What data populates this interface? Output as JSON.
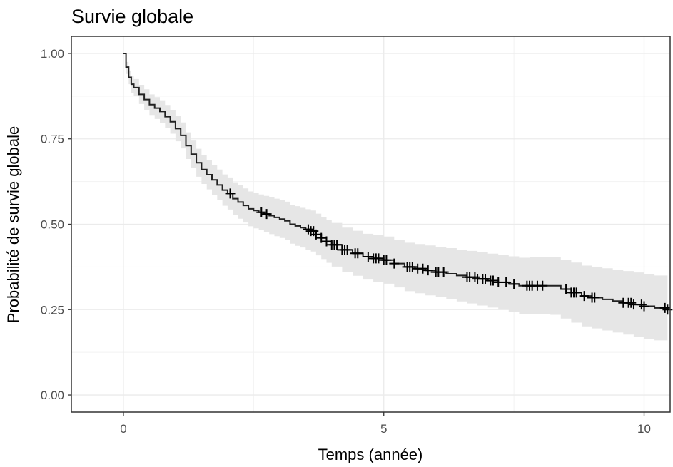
{
  "chart_data": {
    "type": "line",
    "title": "Survie globale",
    "xlabel": "Temps (année)",
    "ylabel": "Probabilité de survie globale",
    "xlim": [
      -1,
      10.5
    ],
    "ylim": [
      -0.05,
      1.05
    ],
    "x_ticks": [
      0,
      5,
      10
    ],
    "x_tick_labels": [
      "0",
      "5",
      "10"
    ],
    "y_ticks": [
      0,
      0.25,
      0.5,
      0.75,
      1
    ],
    "y_tick_labels": [
      "0.00",
      "0.25",
      "0.50",
      "0.75",
      "1.00"
    ],
    "grid": true,
    "legend": "none",
    "line_color": "#222222",
    "ci_color": "#e6e6e6",
    "survival": {
      "time": [
        0,
        0.05,
        0.1,
        0.15,
        0.2,
        0.3,
        0.4,
        0.5,
        0.6,
        0.7,
        0.8,
        0.9,
        1.0,
        1.1,
        1.2,
        1.3,
        1.4,
        1.5,
        1.6,
        1.7,
        1.8,
        1.9,
        2.0,
        2.1,
        2.2,
        2.3,
        2.4,
        2.5,
        2.6,
        2.7,
        2.8,
        2.9,
        3.0,
        3.1,
        3.2,
        3.3,
        3.4,
        3.5,
        3.6,
        3.7,
        3.8,
        3.9,
        4.0,
        4.2,
        4.4,
        4.6,
        4.8,
        5.0,
        5.2,
        5.4,
        5.6,
        5.8,
        6.0,
        6.2,
        6.4,
        6.6,
        6.8,
        7.0,
        7.2,
        7.4,
        7.6,
        7.8,
        8.0,
        8.2,
        8.4,
        8.6,
        8.8,
        9.0,
        9.2,
        9.4,
        9.6,
        9.8,
        10.0,
        10.2,
        10.45
      ],
      "surv": [
        1.0,
        0.96,
        0.93,
        0.91,
        0.9,
        0.88,
        0.865,
        0.85,
        0.84,
        0.83,
        0.815,
        0.8,
        0.78,
        0.76,
        0.73,
        0.705,
        0.68,
        0.66,
        0.645,
        0.63,
        0.615,
        0.6,
        0.59,
        0.575,
        0.565,
        0.555,
        0.545,
        0.54,
        0.535,
        0.53,
        0.525,
        0.52,
        0.515,
        0.51,
        0.5,
        0.495,
        0.49,
        0.485,
        0.48,
        0.47,
        0.46,
        0.45,
        0.44,
        0.425,
        0.415,
        0.405,
        0.4,
        0.395,
        0.385,
        0.375,
        0.37,
        0.365,
        0.36,
        0.355,
        0.35,
        0.345,
        0.34,
        0.335,
        0.33,
        0.325,
        0.32,
        0.32,
        0.32,
        0.32,
        0.31,
        0.3,
        0.29,
        0.285,
        0.28,
        0.275,
        0.27,
        0.265,
        0.26,
        0.255,
        0.25
      ],
      "lower": [
        1.0,
        0.94,
        0.91,
        0.885,
        0.875,
        0.852,
        0.835,
        0.82,
        0.808,
        0.797,
        0.781,
        0.765,
        0.743,
        0.722,
        0.691,
        0.665,
        0.639,
        0.618,
        0.602,
        0.586,
        0.57,
        0.554,
        0.543,
        0.527,
        0.516,
        0.505,
        0.494,
        0.488,
        0.483,
        0.477,
        0.471,
        0.465,
        0.46,
        0.454,
        0.443,
        0.437,
        0.432,
        0.426,
        0.42,
        0.409,
        0.398,
        0.387,
        0.376,
        0.36,
        0.349,
        0.338,
        0.332,
        0.326,
        0.315,
        0.304,
        0.298,
        0.292,
        0.286,
        0.28,
        0.274,
        0.268,
        0.262,
        0.256,
        0.25,
        0.244,
        0.238,
        0.237,
        0.236,
        0.235,
        0.224,
        0.212,
        0.201,
        0.195,
        0.189,
        0.183,
        0.177,
        0.171,
        0.165,
        0.16,
        0.154
      ],
      "upper": [
        1.0,
        0.975,
        0.95,
        0.935,
        0.925,
        0.908,
        0.895,
        0.88,
        0.872,
        0.863,
        0.849,
        0.835,
        0.817,
        0.798,
        0.769,
        0.745,
        0.721,
        0.702,
        0.688,
        0.674,
        0.66,
        0.646,
        0.637,
        0.623,
        0.614,
        0.605,
        0.596,
        0.592,
        0.587,
        0.583,
        0.579,
        0.575,
        0.57,
        0.566,
        0.557,
        0.553,
        0.548,
        0.544,
        0.54,
        0.531,
        0.522,
        0.513,
        0.504,
        0.49,
        0.481,
        0.472,
        0.468,
        0.464,
        0.455,
        0.446,
        0.442,
        0.438,
        0.434,
        0.43,
        0.426,
        0.422,
        0.418,
        0.414,
        0.41,
        0.406,
        0.402,
        0.403,
        0.404,
        0.405,
        0.396,
        0.388,
        0.379,
        0.375,
        0.371,
        0.367,
        0.363,
        0.359,
        0.355,
        0.35,
        0.346
      ]
    },
    "censor_times": [
      2.05,
      2.65,
      2.75,
      3.55,
      3.6,
      3.65,
      3.7,
      3.8,
      3.9,
      4.0,
      4.05,
      4.1,
      4.2,
      4.25,
      4.3,
      4.45,
      4.5,
      4.7,
      4.8,
      4.85,
      4.9,
      5.0,
      5.05,
      5.2,
      5.45,
      5.5,
      5.55,
      5.65,
      5.75,
      5.85,
      6.0,
      6.05,
      6.15,
      6.6,
      6.65,
      6.75,
      6.8,
      6.9,
      6.95,
      7.05,
      7.1,
      7.2,
      7.35,
      7.5,
      7.75,
      7.8,
      7.85,
      7.95,
      8.05,
      8.5,
      8.6,
      8.65,
      8.7,
      8.85,
      9.0,
      9.05,
      9.6,
      9.7,
      9.75,
      9.8,
      9.95,
      10.0,
      10.4,
      10.45
    ]
  }
}
